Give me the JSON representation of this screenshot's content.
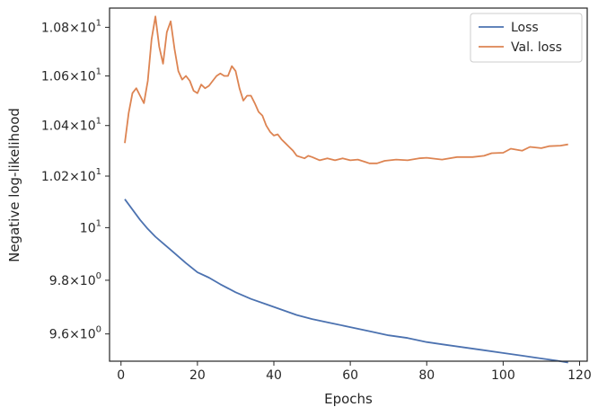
{
  "chart_data": {
    "type": "line",
    "xlabel": "Epochs",
    "ylabel": "Negative log-likelihood",
    "xlim": [
      -3,
      122
    ],
    "ylim": [
      9.5,
      10.88
    ],
    "y_scale": "log",
    "grid": false,
    "legend": "top-right",
    "x_ticks": [
      {
        "value": 0,
        "label": "0"
      },
      {
        "value": 20,
        "label": "20"
      },
      {
        "value": 40,
        "label": "40"
      },
      {
        "value": 60,
        "label": "60"
      },
      {
        "value": 80,
        "label": "80"
      },
      {
        "value": 100,
        "label": "100"
      },
      {
        "value": 120,
        "label": "120"
      }
    ],
    "y_ticks": [
      {
        "value": 9.6,
        "mant": "9.6",
        "base": "10",
        "exp": "0"
      },
      {
        "value": 9.8,
        "mant": "9.8",
        "base": "10",
        "exp": "0"
      },
      {
        "value": 10.0,
        "mant": "",
        "base": "10",
        "exp": "1"
      },
      {
        "value": 10.2,
        "mant": "1.02",
        "base": "10",
        "exp": "1"
      },
      {
        "value": 10.4,
        "mant": "1.04",
        "base": "10",
        "exp": "1"
      },
      {
        "value": 10.6,
        "mant": "1.06",
        "base": "10",
        "exp": "1"
      },
      {
        "value": 10.8,
        "mant": "1.08",
        "base": "10",
        "exp": "1"
      }
    ],
    "series": [
      {
        "name": "Loss",
        "color": "#4c72b0",
        "points": [
          [
            1,
            10.11
          ],
          [
            3,
            10.07
          ],
          [
            5,
            10.03
          ],
          [
            7,
            9.995
          ],
          [
            9,
            9.965
          ],
          [
            11,
            9.94
          ],
          [
            13,
            9.915
          ],
          [
            15,
            9.89
          ],
          [
            17,
            9.865
          ],
          [
            20,
            9.83
          ],
          [
            23,
            9.81
          ],
          [
            26,
            9.785
          ],
          [
            30,
            9.755
          ],
          [
            34,
            9.73
          ],
          [
            38,
            9.71
          ],
          [
            42,
            9.69
          ],
          [
            46,
            9.67
          ],
          [
            50,
            9.655
          ],
          [
            55,
            9.64
          ],
          [
            60,
            9.625
          ],
          [
            65,
            9.61
          ],
          [
            70,
            9.595
          ],
          [
            75,
            9.585
          ],
          [
            80,
            9.57
          ],
          [
            85,
            9.56
          ],
          [
            90,
            9.55
          ],
          [
            95,
            9.54
          ],
          [
            100,
            9.53
          ],
          [
            105,
            9.52
          ],
          [
            110,
            9.51
          ],
          [
            114,
            9.502
          ],
          [
            117,
            9.495
          ]
        ]
      },
      {
        "name": "Val. loss",
        "color": "#dd8452",
        "points": [
          [
            1,
            10.33
          ],
          [
            2,
            10.45
          ],
          [
            3,
            10.53
          ],
          [
            4,
            10.55
          ],
          [
            5,
            10.52
          ],
          [
            6,
            10.49
          ],
          [
            7,
            10.58
          ],
          [
            8,
            10.75
          ],
          [
            9,
            10.845
          ],
          [
            10,
            10.72
          ],
          [
            11,
            10.65
          ],
          [
            12,
            10.78
          ],
          [
            13,
            10.825
          ],
          [
            14,
            10.71
          ],
          [
            15,
            10.62
          ],
          [
            16,
            10.585
          ],
          [
            17,
            10.6
          ],
          [
            18,
            10.58
          ],
          [
            19,
            10.54
          ],
          [
            20,
            10.53
          ],
          [
            21,
            10.565
          ],
          [
            22,
            10.55
          ],
          [
            23,
            10.56
          ],
          [
            24,
            10.58
          ],
          [
            25,
            10.6
          ],
          [
            26,
            10.61
          ],
          [
            27,
            10.6
          ],
          [
            28,
            10.6
          ],
          [
            29,
            10.64
          ],
          [
            30,
            10.62
          ],
          [
            31,
            10.55
          ],
          [
            32,
            10.5
          ],
          [
            33,
            10.52
          ],
          [
            34,
            10.52
          ],
          [
            35,
            10.49
          ],
          [
            36,
            10.455
          ],
          [
            37,
            10.44
          ],
          [
            38,
            10.4
          ],
          [
            39,
            10.375
          ],
          [
            40,
            10.36
          ],
          [
            41,
            10.365
          ],
          [
            42,
            10.345
          ],
          [
            43,
            10.33
          ],
          [
            44,
            10.315
          ],
          [
            45,
            10.3
          ],
          [
            46,
            10.28
          ],
          [
            47,
            10.275
          ],
          [
            48,
            10.27
          ],
          [
            49,
            10.28
          ],
          [
            50,
            10.275
          ],
          [
            52,
            10.262
          ],
          [
            54,
            10.27
          ],
          [
            56,
            10.262
          ],
          [
            58,
            10.27
          ],
          [
            60,
            10.262
          ],
          [
            62,
            10.265
          ],
          [
            64,
            10.255
          ],
          [
            65,
            10.25
          ],
          [
            67,
            10.25
          ],
          [
            69,
            10.26
          ],
          [
            72,
            10.265
          ],
          [
            75,
            10.262
          ],
          [
            78,
            10.27
          ],
          [
            80,
            10.272
          ],
          [
            84,
            10.265
          ],
          [
            88,
            10.275
          ],
          [
            92,
            10.275
          ],
          [
            95,
            10.28
          ],
          [
            97,
            10.29
          ],
          [
            100,
            10.292
          ],
          [
            102,
            10.308
          ],
          [
            105,
            10.3
          ],
          [
            107,
            10.315
          ],
          [
            110,
            10.31
          ],
          [
            112,
            10.318
          ],
          [
            115,
            10.32
          ],
          [
            117,
            10.325
          ]
        ]
      }
    ]
  }
}
